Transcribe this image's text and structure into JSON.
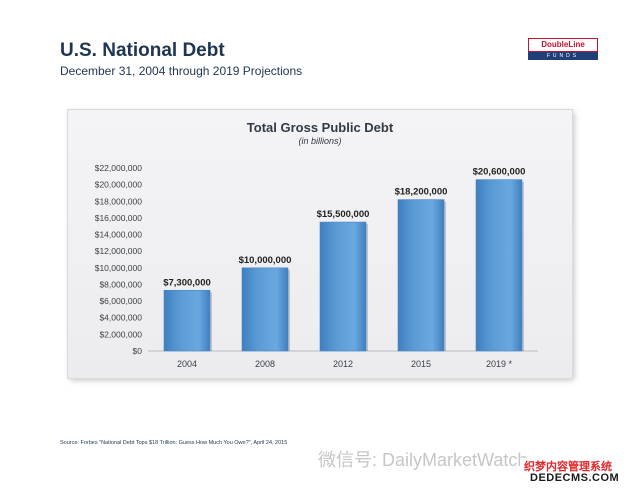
{
  "slide": {
    "title": "U.S. National Debt",
    "subtitle": "December 31, 2004 through 2019 Projections",
    "source": "Source:  Forbes \"National Debt Tops $18 Trillion: Guess How Much You Owe?\", April 24, 2015"
  },
  "logo": {
    "name": "DoubleLine",
    "tagline": "FUNDS"
  },
  "watermark": {
    "text": "微信号: DailyMarketWatch",
    "badge_line1": "织梦内容管理系统",
    "badge_line2": "DEDECMS.COM"
  },
  "colors": {
    "bar": "#5b9bd5",
    "bar_dark": "#3f7fc0",
    "title": "#1f3552",
    "panel": "#efeff2"
  },
  "chart_data": {
    "type": "bar",
    "title": "Total Gross Public Debt",
    "subtitle": "(in billions)",
    "categories": [
      "2004",
      "2008",
      "2012",
      "2015",
      "2019 *"
    ],
    "values": [
      7300000,
      10000000,
      15500000,
      18200000,
      20600000
    ],
    "data_labels": [
      "$7,300,000",
      "$10,000,000",
      "$15,500,000",
      "$18,200,000",
      "$20,600,000"
    ],
    "ylim": [
      0,
      22000000
    ],
    "ytick_step": 2000000,
    "yticks": [
      "$0",
      "$2,000,000",
      "$4,000,000",
      "$6,000,000",
      "$8,000,000",
      "$10,000,000",
      "$12,000,000",
      "$14,000,000",
      "$16,000,000",
      "$18,000,000",
      "$20,000,000",
      "$22,000,000"
    ],
    "grid": false,
    "legend": "none"
  }
}
